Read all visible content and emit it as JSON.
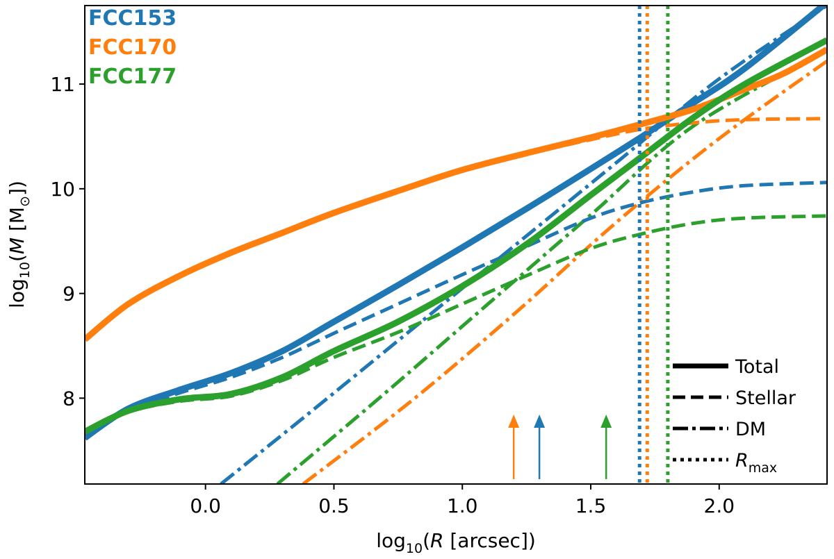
{
  "chart_data": {
    "type": "line",
    "xlabel_parts": [
      "log",
      "10",
      "(",
      "R",
      " [arcsec])"
    ],
    "ylabel_parts": [
      "log",
      "10",
      "(",
      "M",
      " [M",
      "⊙",
      "])"
    ],
    "xlim": [
      -0.47,
      2.42
    ],
    "ylim": [
      7.18,
      11.75
    ],
    "xticks": [
      0.0,
      0.5,
      1.0,
      1.5,
      2.0
    ],
    "xtick_labels": [
      "0.0",
      "0.5",
      "1.0",
      "1.5",
      "2.0"
    ],
    "yticks": [
      8,
      9,
      10,
      11
    ],
    "ytick_labels": [
      "8",
      "9",
      "10",
      "11"
    ],
    "colors": {
      "FCC153": "#1f77b4",
      "FCC170": "#ff7f0e",
      "FCC177": "#2ca02c"
    },
    "galaxy_labels": [
      "FCC153",
      "FCC170",
      "FCC177"
    ],
    "legend": {
      "position": "bottom-right",
      "entries": [
        {
          "style": "solid",
          "label": "Total"
        },
        {
          "style": "dashed",
          "label": "Stellar"
        },
        {
          "style": "dashdot",
          "label": "DM"
        },
        {
          "style": "dotted",
          "label_parts": [
            "R",
            "max"
          ]
        }
      ]
    },
    "series": [
      {
        "name": "FCC153 Total",
        "galaxy": "FCC153",
        "kind": "total",
        "x": [
          -0.47,
          -0.3,
          -0.1,
          0.1,
          0.3,
          0.5,
          0.75,
          1.0,
          1.25,
          1.5,
          1.7,
          1.9,
          2.1,
          2.42
        ],
        "y": [
          7.62,
          7.9,
          8.08,
          8.24,
          8.45,
          8.73,
          9.08,
          9.44,
          9.81,
          10.19,
          10.5,
          10.82,
          11.15,
          11.78
        ]
      },
      {
        "name": "FCC153 Stellar",
        "galaxy": "FCC153",
        "kind": "stellar",
        "x": [
          -0.47,
          -0.3,
          -0.1,
          0.1,
          0.3,
          0.5,
          0.75,
          1.0,
          1.25,
          1.5,
          1.7,
          1.9,
          2.1,
          2.42
        ],
        "y": [
          7.62,
          7.88,
          8.05,
          8.2,
          8.39,
          8.62,
          8.9,
          9.18,
          9.45,
          9.72,
          9.87,
          9.97,
          10.03,
          10.06
        ]
      },
      {
        "name": "FCC153 DM",
        "galaxy": "FCC153",
        "kind": "dm",
        "x": [
          0.06,
          0.4,
          0.8,
          1.2,
          1.6,
          2.0,
          2.42
        ],
        "y": [
          7.18,
          7.85,
          8.65,
          9.45,
          10.25,
          11.05,
          11.75
        ]
      },
      {
        "name": "FCC170 Total",
        "galaxy": "FCC170",
        "kind": "total",
        "x": [
          -0.47,
          -0.3,
          -0.1,
          0.1,
          0.3,
          0.5,
          0.75,
          1.0,
          1.25,
          1.5,
          1.7,
          1.9,
          2.1,
          2.25,
          2.42
        ],
        "y": [
          8.56,
          8.9,
          9.17,
          9.39,
          9.58,
          9.77,
          9.98,
          10.18,
          10.34,
          10.49,
          10.62,
          10.76,
          10.95,
          11.1,
          11.33
        ]
      },
      {
        "name": "FCC170 Stellar",
        "galaxy": "FCC170",
        "kind": "stellar",
        "x": [
          -0.47,
          -0.3,
          -0.1,
          0.1,
          0.3,
          0.5,
          0.75,
          1.0,
          1.25,
          1.5,
          1.7,
          1.9,
          2.1,
          2.42
        ],
        "y": [
          8.56,
          8.9,
          9.17,
          9.39,
          9.58,
          9.77,
          9.98,
          10.17,
          10.33,
          10.47,
          10.57,
          10.63,
          10.66,
          10.67
        ]
      },
      {
        "name": "FCC170 DM",
        "galaxy": "FCC170",
        "kind": "dm",
        "x": [
          0.38,
          0.8,
          1.2,
          1.6,
          2.0,
          2.42
        ],
        "y": [
          7.18,
          7.97,
          8.8,
          9.68,
          10.48,
          11.22
        ]
      },
      {
        "name": "FCC177 Total",
        "galaxy": "FCC177",
        "kind": "total",
        "x": [
          -0.47,
          -0.3,
          -0.1,
          0.1,
          0.3,
          0.5,
          0.75,
          1.0,
          1.25,
          1.5,
          1.7,
          1.9,
          2.1,
          2.42
        ],
        "y": [
          7.68,
          7.88,
          7.99,
          8.04,
          8.2,
          8.45,
          8.73,
          9.07,
          9.47,
          9.94,
          10.31,
          10.68,
          11.0,
          11.42
        ]
      },
      {
        "name": "FCC177 Stellar",
        "galaxy": "FCC177",
        "kind": "stellar",
        "x": [
          -0.47,
          -0.3,
          -0.1,
          0.1,
          0.3,
          0.5,
          0.75,
          1.0,
          1.25,
          1.5,
          1.7,
          1.9,
          2.1,
          2.42
        ],
        "y": [
          7.68,
          7.87,
          7.97,
          8.02,
          8.17,
          8.39,
          8.63,
          8.9,
          9.17,
          9.43,
          9.57,
          9.67,
          9.72,
          9.74
        ]
      },
      {
        "name": "FCC177 DM",
        "galaxy": "FCC177",
        "kind": "dm",
        "x": [
          0.28,
          0.7,
          1.1,
          1.5,
          1.9,
          2.42
        ],
        "y": [
          7.18,
          8.05,
          8.9,
          9.75,
          10.6,
          11.32
        ]
      }
    ],
    "rmax_lines": [
      {
        "galaxy": "FCC153",
        "x": 1.69
      },
      {
        "galaxy": "FCC170",
        "x": 1.72
      },
      {
        "galaxy": "FCC177",
        "x": 1.8
      }
    ],
    "arrows": [
      {
        "galaxy": "FCC170",
        "x": 1.2
      },
      {
        "galaxy": "FCC153",
        "x": 1.3
      },
      {
        "galaxy": "FCC177",
        "x": 1.56
      }
    ]
  }
}
